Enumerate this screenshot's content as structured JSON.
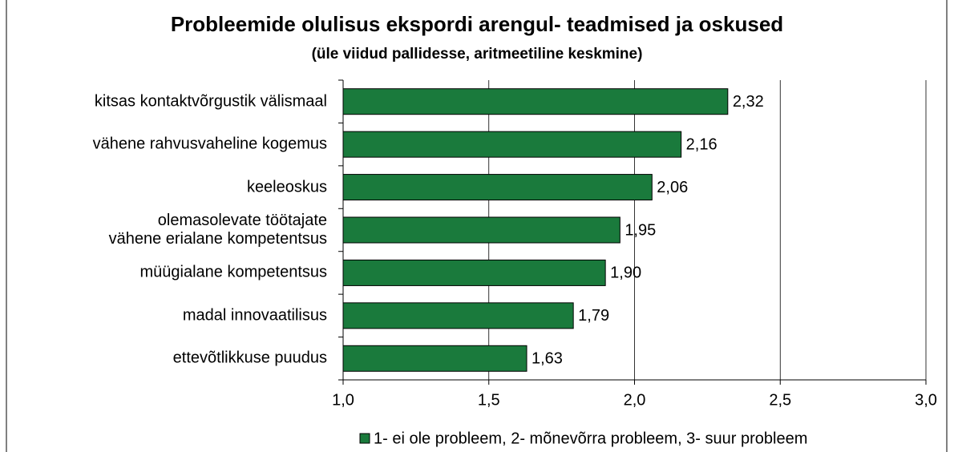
{
  "chart_data": {
    "type": "barh",
    "title": "Probleemide olulisus ekspordi arengul- teadmised ja oskused",
    "subtitle": "(üle viidud pallidesse, aritmeetiline keskmine)",
    "categories": [
      "kitsas kontaktvõrgustik välismaal",
      "vähene rahvusvaheline kogemus",
      "keeleoskus",
      "olemasolevate töötajate vähene erialane kompetentsus",
      "müügialane kompetentsus",
      "madal innovaatilisus",
      "ettevõtlikkuse puudus"
    ],
    "series": [
      {
        "name": "1- ei ole probleem, 2- mõnevõrra probleem, 3- suur probleem",
        "color": "#1a7a3c",
        "values": [
          2.32,
          2.16,
          2.06,
          1.95,
          1.9,
          1.79,
          1.63
        ],
        "value_labels": [
          "2,32",
          "2,16",
          "2,06",
          "1,95",
          "1,90",
          "1,79",
          "1,63"
        ]
      }
    ],
    "xlim": [
      1.0,
      3.0
    ],
    "xticks": [
      {
        "value": 1.0,
        "label": "1,0"
      },
      {
        "value": 1.5,
        "label": "1,5"
      },
      {
        "value": 2.0,
        "label": "2,0"
      },
      {
        "value": 2.5,
        "label": "2,5"
      },
      {
        "value": 3.0,
        "label": "3,0"
      }
    ],
    "grid": true,
    "legend": "bottom"
  }
}
